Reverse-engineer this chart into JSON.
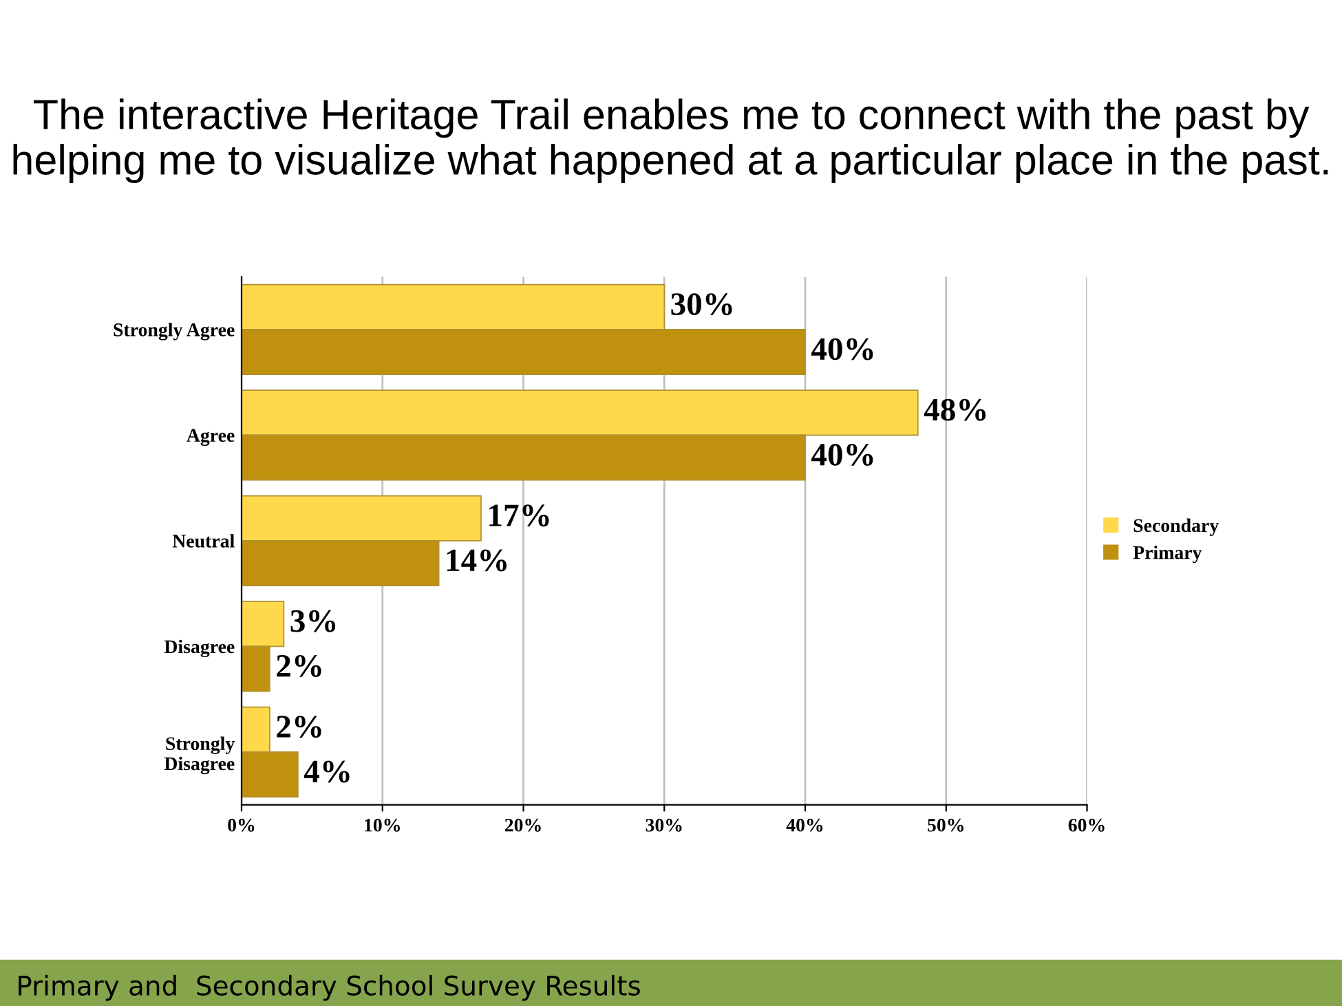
{
  "chart_data": {
    "type": "bar",
    "orientation": "horizontal",
    "title": "The interactive Heritage Trail enables me to connect with the past by helping me to visualize what happened at a particular place in the past.",
    "categories": [
      "Strongly Agree",
      "Agree",
      "Neutral",
      "Disagree",
      "Strongly\nDisagree"
    ],
    "series": [
      {
        "name": "Secondary",
        "color": "#ffd84c",
        "values": [
          30,
          48,
          17,
          3,
          2
        ],
        "value_labels": [
          "30%",
          "48%",
          "17%",
          "3%",
          "2%"
        ]
      },
      {
        "name": "Primary",
        "color": "#c0900f",
        "values": [
          40,
          40,
          14,
          2,
          4
        ],
        "value_labels": [
          "40%",
          "40%",
          "14%",
          "2%",
          "4%"
        ]
      }
    ],
    "xlim": [
      0,
      60
    ],
    "xticks": [
      {
        "value": 0,
        "label": "0%"
      },
      {
        "value": 10,
        "label": "10%"
      },
      {
        "value": 20,
        "label": "20%"
      },
      {
        "value": 30,
        "label": "30%"
      },
      {
        "value": 40,
        "label": "40%"
      },
      {
        "value": 50,
        "label": "50%"
      },
      {
        "value": 60,
        "label": "60%"
      }
    ],
    "grid": "x",
    "legend": "right",
    "annotations": [
      "Primary and  Secondary School Survey Results"
    ]
  }
}
